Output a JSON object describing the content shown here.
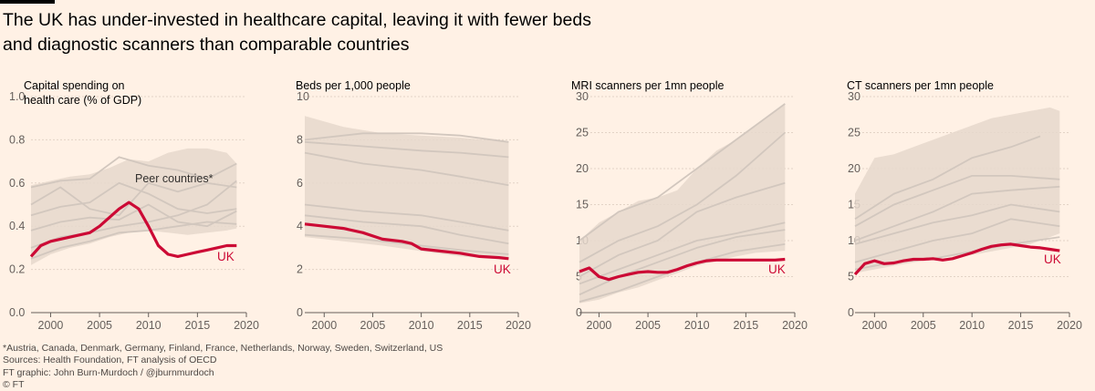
{
  "headline": {
    "line1": "The UK has under-invested in healthcare capital, leaving it with fewer beds",
    "line2": "and diagnostic scanners than comparable countries"
  },
  "colors": {
    "background": "#fff1e5",
    "uk": "#cc0a35",
    "peer_band": "#e6d8cd",
    "peer_line": "#d2c7be",
    "axis": "#66605c"
  },
  "footer": {
    "footnote": "*Austria, Canada, Denmark, Germany, Finland, France, Netherlands, Norway, Sweden, Switzerland, US",
    "sources": "Sources: Health Foundation, FT analysis of OECD",
    "credit": "FT graphic: John Burn-Murdoch / @jburnmurdoch",
    "copyright": "© FT"
  },
  "chart_data": [
    {
      "type": "line",
      "title_lines": [
        "Capital spending on",
        "health care (% of GDP)"
      ],
      "annotation": "Peer countries*",
      "ylim": [
        0,
        1.0
      ],
      "yticks": [
        0.0,
        0.2,
        0.4,
        0.6,
        0.8,
        1.0
      ],
      "ytick_labels": [
        "0.0",
        "0.2",
        "0.4",
        "0.6",
        "0.8",
        "1.0"
      ],
      "xlim": [
        1998,
        2020
      ],
      "xticks": [
        2000,
        2005,
        2010,
        2015,
        2020
      ],
      "band": {
        "x": [
          1998,
          2000,
          2002,
          2004,
          2006,
          2008,
          2010,
          2012,
          2014,
          2016,
          2018,
          2019
        ],
        "low": [
          0.22,
          0.27,
          0.3,
          0.32,
          0.35,
          0.37,
          0.38,
          0.37,
          0.36,
          0.37,
          0.38,
          0.39
        ],
        "high": [
          0.59,
          0.61,
          0.63,
          0.64,
          0.67,
          0.71,
          0.7,
          0.74,
          0.76,
          0.76,
          0.74,
          0.69
        ]
      },
      "peer_series": [
        {
          "x": [
            1998,
            2001,
            2004,
            2007,
            2010,
            2013,
            2016,
            2019
          ],
          "y": [
            0.58,
            0.61,
            0.62,
            0.72,
            0.68,
            0.66,
            0.62,
            0.69
          ]
        },
        {
          "x": [
            1998,
            2001,
            2004,
            2007,
            2010,
            2013,
            2016,
            2019
          ],
          "y": [
            0.5,
            0.58,
            0.48,
            0.45,
            0.6,
            0.56,
            0.6,
            0.58
          ]
        },
        {
          "x": [
            1998,
            2001,
            2004,
            2007,
            2010,
            2013,
            2016,
            2019
          ],
          "y": [
            0.45,
            0.49,
            0.51,
            0.6,
            0.55,
            0.48,
            0.46,
            0.48
          ]
        },
        {
          "x": [
            1998,
            2001,
            2004,
            2007,
            2010,
            2013,
            2016,
            2019
          ],
          "y": [
            0.38,
            0.42,
            0.44,
            0.43,
            0.5,
            0.42,
            0.4,
            0.47
          ]
        },
        {
          "x": [
            1998,
            2001,
            2004,
            2007,
            2010,
            2013,
            2016,
            2019
          ],
          "y": [
            0.3,
            0.35,
            0.37,
            0.4,
            0.42,
            0.45,
            0.5,
            0.61
          ]
        },
        {
          "x": [
            1998,
            2001,
            2004,
            2007,
            2010,
            2013,
            2016,
            2019
          ],
          "y": [
            0.25,
            0.3,
            0.33,
            0.37,
            0.38,
            0.4,
            0.42,
            0.41
          ]
        }
      ],
      "uk": {
        "name": "UK",
        "x": [
          1998,
          1999,
          2000,
          2001,
          2002,
          2003,
          2004,
          2005,
          2006,
          2007,
          2008,
          2009,
          2010,
          2011,
          2012,
          2013,
          2014,
          2015,
          2016,
          2017,
          2018,
          2019
        ],
        "y": [
          0.26,
          0.31,
          0.33,
          0.34,
          0.35,
          0.36,
          0.37,
          0.4,
          0.44,
          0.48,
          0.51,
          0.48,
          0.4,
          0.31,
          0.27,
          0.26,
          0.27,
          0.28,
          0.29,
          0.3,
          0.31,
          0.31
        ]
      }
    },
    {
      "type": "line",
      "title_lines": [
        "Beds per 1,000 people"
      ],
      "ylim": [
        0,
        10
      ],
      "yticks": [
        0,
        2,
        4,
        6,
        8,
        10
      ],
      "ytick_labels": [
        "0",
        "2",
        "4",
        "6",
        "8",
        "10"
      ],
      "xlim": [
        1998,
        2020
      ],
      "xticks": [
        2000,
        2005,
        2010,
        2015,
        2020
      ],
      "band": {
        "x": [
          1998,
          2002,
          2006,
          2010,
          2014,
          2019
        ],
        "low": [
          3.5,
          3.3,
          3.1,
          2.85,
          2.6,
          2.45
        ],
        "high": [
          9.1,
          8.6,
          8.3,
          8.2,
          8.1,
          7.9
        ]
      },
      "peer_series": [
        {
          "x": [
            1998,
            2004,
            2010,
            2014,
            2019
          ],
          "y": [
            8.0,
            8.3,
            8.3,
            8.2,
            7.9
          ]
        },
        {
          "x": [
            1998,
            2004,
            2010,
            2014,
            2019
          ],
          "y": [
            7.9,
            7.7,
            7.5,
            7.4,
            7.2
          ]
        },
        {
          "x": [
            1998,
            2004,
            2010,
            2014,
            2019
          ],
          "y": [
            7.4,
            6.9,
            6.6,
            6.3,
            5.9
          ]
        },
        {
          "x": [
            1998,
            2004,
            2010,
            2014,
            2019
          ],
          "y": [
            5.0,
            4.7,
            4.5,
            4.2,
            3.8
          ]
        },
        {
          "x": [
            1998,
            2004,
            2010,
            2014,
            2019
          ],
          "y": [
            4.5,
            4.2,
            4.0,
            3.6,
            3.2
          ]
        },
        {
          "x": [
            1998,
            2004,
            2010,
            2014,
            2019
          ],
          "y": [
            3.6,
            3.4,
            3.1,
            2.9,
            2.7
          ]
        }
      ],
      "uk": {
        "name": "UK",
        "x": [
          1998,
          2000,
          2002,
          2004,
          2006,
          2008,
          2009,
          2010,
          2012,
          2014,
          2016,
          2018,
          2019
        ],
        "y": [
          4.1,
          4.0,
          3.9,
          3.7,
          3.4,
          3.3,
          3.2,
          2.95,
          2.85,
          2.75,
          2.6,
          2.55,
          2.5
        ]
      }
    },
    {
      "type": "line",
      "title_lines": [
        "MRI scanners per 1mn people"
      ],
      "ylim": [
        0,
        30
      ],
      "yticks": [
        0,
        5,
        10,
        15,
        20,
        25,
        30
      ],
      "ytick_labels": [
        "0",
        "5",
        "10",
        "15",
        "20",
        "25",
        "30"
      ],
      "xlim": [
        1998,
        2020
      ],
      "xticks": [
        2000,
        2005,
        2010,
        2015,
        2020
      ],
      "band": {
        "x": [
          1998,
          2000,
          2002,
          2004,
          2006,
          2008,
          2010,
          2012,
          2014,
          2016,
          2018,
          2019
        ],
        "low": [
          1.3,
          1.8,
          2.8,
          3.5,
          4.5,
          5.5,
          6.5,
          7.2,
          7.8,
          8.3,
          8.5,
          8.6
        ],
        "high": [
          10.0,
          12.5,
          14.0,
          15.5,
          16.0,
          17.0,
          20.0,
          22.5,
          24.0,
          26.0,
          28.0,
          29.0
        ]
      },
      "peer_series": [
        {
          "x": [
            1998,
            2002,
            2006,
            2010,
            2014,
            2019
          ],
          "y": [
            10.0,
            14.0,
            16.0,
            20.0,
            24.0,
            29.0
          ]
        },
        {
          "x": [
            1998,
            2002,
            2006,
            2010,
            2014,
            2019
          ],
          "y": [
            7.0,
            10.0,
            12.0,
            15.0,
            19.0,
            25.0
          ]
        },
        {
          "x": [
            1998,
            2002,
            2006,
            2010,
            2014,
            2019
          ],
          "y": [
            5.0,
            8.0,
            10.0,
            14.0,
            16.0,
            18.0
          ]
        },
        {
          "x": [
            1998,
            2002,
            2006,
            2010,
            2014,
            2019
          ],
          "y": [
            4.0,
            6.0,
            8.0,
            10.0,
            11.0,
            12.5
          ]
        },
        {
          "x": [
            1998,
            2002,
            2006,
            2010,
            2014,
            2019
          ],
          "y": [
            2.5,
            5.0,
            7.0,
            9.0,
            10.5,
            11.5
          ]
        },
        {
          "x": [
            1998,
            2002,
            2006,
            2010,
            2014,
            2019
          ],
          "y": [
            1.5,
            3.0,
            5.0,
            7.0,
            8.5,
            9.5
          ]
        }
      ],
      "uk": {
        "name": "UK",
        "x": [
          1998,
          1999,
          2000,
          2001,
          2002,
          2003,
          2004,
          2005,
          2006,
          2007,
          2008,
          2009,
          2010,
          2011,
          2012,
          2013,
          2014,
          2015,
          2016,
          2017,
          2018,
          2019
        ],
        "y": [
          5.7,
          6.2,
          5.0,
          4.6,
          5.0,
          5.3,
          5.6,
          5.7,
          5.6,
          5.6,
          6.0,
          6.5,
          6.9,
          7.2,
          7.3,
          7.3,
          7.3,
          7.3,
          7.3,
          7.3,
          7.3,
          7.4
        ]
      }
    },
    {
      "type": "line",
      "title_lines": [
        "CT scanners per 1mn people"
      ],
      "ylim": [
        0,
        30
      ],
      "yticks": [
        0,
        5,
        10,
        15,
        20,
        25,
        30
      ],
      "ytick_labels": [
        "0",
        "5",
        "10",
        "15",
        "20",
        "25",
        "30"
      ],
      "xlim": [
        1998,
        2020
      ],
      "xticks": [
        2000,
        2005,
        2010,
        2015,
        2020
      ],
      "band": {
        "x": [
          1998,
          2000,
          2002,
          2004,
          2006,
          2008,
          2010,
          2012,
          2014,
          2016,
          2018,
          2019
        ],
        "low": [
          5.5,
          6.0,
          6.5,
          7.0,
          7.5,
          7.8,
          8.0,
          8.5,
          9.0,
          9.5,
          10.5,
          11.0
        ],
        "high": [
          16.5,
          21.5,
          22.0,
          23.0,
          24.0,
          25.0,
          26.0,
          27.0,
          27.5,
          28.0,
          28.5,
          28.0
        ]
      },
      "peer_series": [
        {
          "x": [
            1998,
            2002,
            2006,
            2010,
            2014,
            2017
          ],
          "y": [
            13.0,
            16.5,
            18.5,
            21.5,
            23.0,
            24.5
          ]
        },
        {
          "x": [
            1998,
            2002,
            2006,
            2010,
            2014,
            2019
          ],
          "y": [
            12.0,
            15.0,
            17.0,
            19.0,
            19.0,
            18.5
          ]
        },
        {
          "x": [
            1998,
            2002,
            2006,
            2010,
            2014,
            2019
          ],
          "y": [
            10.0,
            12.0,
            14.0,
            16.5,
            17.0,
            17.5
          ]
        },
        {
          "x": [
            1998,
            2002,
            2006,
            2010,
            2014,
            2019
          ],
          "y": [
            9.5,
            11.0,
            12.5,
            13.5,
            15.0,
            14.0
          ]
        },
        {
          "x": [
            1998,
            2002,
            2006,
            2010,
            2014,
            2019
          ],
          "y": [
            7.0,
            8.5,
            10.0,
            11.0,
            13.0,
            12.0
          ]
        },
        {
          "x": [
            1998,
            2002,
            2006,
            2010,
            2014,
            2019
          ],
          "y": [
            6.0,
            7.0,
            7.5,
            8.5,
            9.5,
            10.5
          ]
        }
      ],
      "uk": {
        "name": "UK",
        "x": [
          1998,
          1999,
          2000,
          2001,
          2002,
          2003,
          2004,
          2005,
          2006,
          2007,
          2008,
          2009,
          2010,
          2011,
          2012,
          2013,
          2014,
          2015,
          2016,
          2017,
          2018,
          2019
        ],
        "y": [
          5.3,
          6.8,
          7.2,
          6.8,
          6.9,
          7.2,
          7.4,
          7.4,
          7.5,
          7.3,
          7.5,
          7.9,
          8.3,
          8.8,
          9.2,
          9.4,
          9.5,
          9.3,
          9.1,
          9.0,
          8.8,
          8.6
        ]
      }
    }
  ]
}
